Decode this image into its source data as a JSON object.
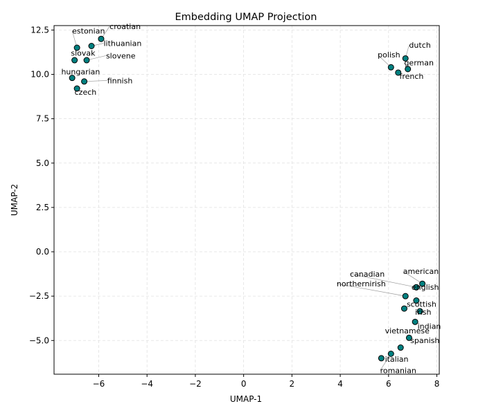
{
  "chart_data": {
    "type": "scatter",
    "title": "Embedding UMAP Projection",
    "xlabel": "UMAP-1",
    "ylabel": "UMAP-2",
    "xlim": [
      -7.85,
      8.1
    ],
    "ylim": [
      -6.9,
      12.75
    ],
    "xticks": [
      -6,
      -4,
      -2,
      0,
      2,
      4,
      6,
      8
    ],
    "xtick_labels": [
      "−6",
      "−4",
      "−2",
      "0",
      "2",
      "4",
      "6",
      "8"
    ],
    "yticks": [
      -5.0,
      -2.5,
      0.0,
      2.5,
      5.0,
      7.5,
      10.0,
      12.5
    ],
    "ytick_labels": [
      "−5.0",
      "−2.5",
      "0.0",
      "2.5",
      "5.0",
      "7.5",
      "10.0",
      "12.5"
    ],
    "grid": true,
    "marker_color": "#008080",
    "marker_edge_color": "#000000",
    "points": [
      {
        "label": "croatian",
        "x": -5.9,
        "y": 12.0,
        "lx": -5.55,
        "ly": 12.55,
        "leader": true
      },
      {
        "label": "lithuanian",
        "x": -6.3,
        "y": 11.6,
        "lx": -5.8,
        "ly": 11.6,
        "leader": true
      },
      {
        "label": "estonian",
        "x": -6.9,
        "y": 11.5,
        "lx": -7.1,
        "ly": 12.3,
        "leader": true
      },
      {
        "label": "slovak",
        "x": -7.0,
        "y": 10.8,
        "lx": -7.15,
        "ly": 11.05,
        "leader": false
      },
      {
        "label": "slovene",
        "x": -6.5,
        "y": 10.8,
        "lx": -5.7,
        "ly": 10.9,
        "leader": true
      },
      {
        "label": "hungarian",
        "x": -7.1,
        "y": 9.8,
        "lx": -7.55,
        "ly": 10.0,
        "leader": false
      },
      {
        "label": "finnish",
        "x": -6.6,
        "y": 9.6,
        "lx": -5.65,
        "ly": 9.5,
        "leader": true
      },
      {
        "label": "czech",
        "x": -6.9,
        "y": 9.2,
        "lx": -7.0,
        "ly": 8.85,
        "leader": false
      },
      {
        "label": "dutch",
        "x": 6.7,
        "y": 10.9,
        "lx": 6.85,
        "ly": 11.5,
        "leader": true
      },
      {
        "label": "german",
        "x": 6.8,
        "y": 10.3,
        "lx": 6.65,
        "ly": 10.5,
        "leader": true
      },
      {
        "label": "polish",
        "x": 6.1,
        "y": 10.4,
        "lx": 5.55,
        "ly": 10.95,
        "leader": true
      },
      {
        "label": "french",
        "x": 6.4,
        "y": 10.1,
        "lx": 6.45,
        "ly": 9.75,
        "leader": false
      },
      {
        "label": "american",
        "x": 7.4,
        "y": -1.8,
        "lx": 6.6,
        "ly": -1.25,
        "leader": true
      },
      {
        "label": "english",
        "x": 7.15,
        "y": -2.0,
        "lx": 6.95,
        "ly": -2.15,
        "leader": false
      },
      {
        "label": "canadian",
        "x": 7.15,
        "y": -2.0,
        "lx": 4.4,
        "ly": -1.4,
        "leader": true
      },
      {
        "label": "northernirish",
        "x": 6.7,
        "y": -2.5,
        "lx": 3.85,
        "ly": -1.95,
        "leader": true
      },
      {
        "label": "scottish",
        "x": 7.15,
        "y": -2.75,
        "lx": 6.75,
        "ly": -3.1,
        "leader": false
      },
      {
        "label": "",
        "x": 6.65,
        "y": -3.2,
        "lx": null,
        "ly": null,
        "leader": false
      },
      {
        "label": "irish",
        "x": 7.3,
        "y": -3.35,
        "lx": 7.1,
        "ly": -3.55,
        "leader": false
      },
      {
        "label": "indian",
        "x": 7.1,
        "y": -3.95,
        "lx": 7.2,
        "ly": -4.35,
        "leader": false
      },
      {
        "label": "vietnamese",
        "x": 6.85,
        "y": -4.85,
        "lx": 5.85,
        "ly": -4.6,
        "leader": false
      },
      {
        "label": "spanish",
        "x": 6.5,
        "y": -5.4,
        "lx": 6.9,
        "ly": -5.15,
        "leader": false
      },
      {
        "label": "italian",
        "x": 5.7,
        "y": -6.0,
        "lx": 5.85,
        "ly": -6.2,
        "leader": false
      },
      {
        "label": "romanian",
        "x": 6.1,
        "y": -5.75,
        "lx": 5.65,
        "ly": -6.85,
        "leader": true
      }
    ]
  }
}
